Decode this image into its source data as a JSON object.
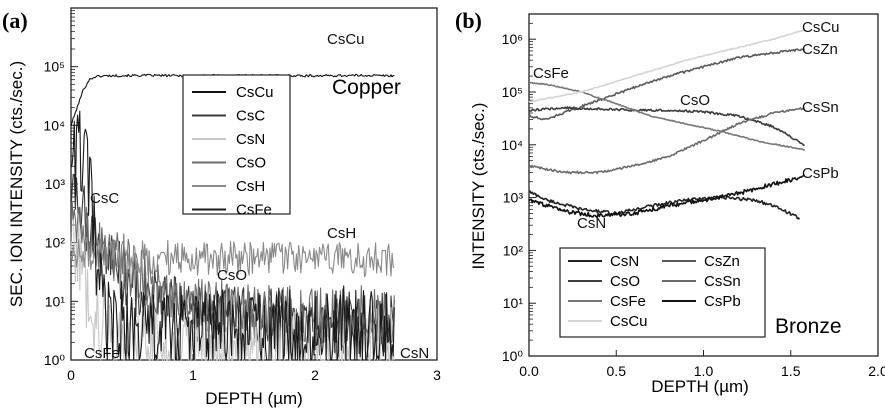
{
  "chart_data": [
    {
      "panel": "(a)",
      "type": "line",
      "material": "Copper",
      "xlabel": "DEPTH (µm)",
      "ylabel": "SEC. ION INTENSITY (cts./sec.)",
      "xlim": [
        0,
        3
      ],
      "ylim": [
        1,
        1000000
      ],
      "yscale": "log",
      "x_ticks": [
        "0",
        "1",
        "2",
        "3"
      ],
      "y_ticks": [
        "10⁰",
        "10¹",
        "10²",
        "10³",
        "10⁴",
        "10⁵"
      ],
      "legend": {
        "position": "upper-right",
        "entries": [
          "CsCu",
          "CsC",
          "CsN",
          "CsO",
          "CsH",
          "CsFe"
        ]
      },
      "series": [
        {
          "name": "CsCu",
          "color": "#111111",
          "noise": 0.02,
          "label": "CsCu",
          "points": [
            [
              0,
              10000
            ],
            [
              0.05,
              20000
            ],
            [
              0.1,
              40000
            ],
            [
              0.15,
              60000
            ],
            [
              0.2,
              68000
            ],
            [
              0.3,
              70000
            ],
            [
              0.6,
              71000
            ],
            [
              1,
              70000
            ],
            [
              1.5,
              71000
            ],
            [
              2,
              70000
            ],
            [
              2.4,
              71000
            ],
            [
              2.65,
              70000
            ]
          ]
        },
        {
          "name": "CsC",
          "color": "#3a3a3a",
          "noise": 0.55,
          "label": "CsC",
          "points": [
            [
              0,
              600
            ],
            [
              0.05,
              500
            ],
            [
              0.1,
              300
            ],
            [
              0.2,
              120
            ],
            [
              0.3,
              60
            ],
            [
              0.5,
              20
            ],
            [
              0.7,
              10
            ],
            [
              1,
              6
            ],
            [
              1.5,
              5
            ],
            [
              2,
              4
            ],
            [
              2.65,
              4
            ]
          ]
        },
        {
          "name": "CsN",
          "color": "#c8c8c8",
          "noise": 0.75,
          "label": "CsN",
          "points": [
            [
              0,
              150
            ],
            [
              0.05,
              100
            ],
            [
              0.1,
              30
            ],
            [
              0.2,
              6
            ],
            [
              0.3,
              3
            ],
            [
              0.5,
              2
            ],
            [
              1,
              1.6
            ],
            [
              2,
              1.5
            ],
            [
              2.65,
              1.5
            ]
          ]
        },
        {
          "name": "CsO",
          "color": "#6e6e6e",
          "noise": 0.5,
          "label": "CsO",
          "points": [
            [
              0,
              170
            ],
            [
              0.1,
              150
            ],
            [
              0.2,
              100
            ],
            [
              0.35,
              60
            ],
            [
              0.5,
              35
            ],
            [
              0.7,
              20
            ],
            [
              0.9,
              12
            ],
            [
              1.2,
              8
            ],
            [
              1.6,
              6
            ],
            [
              2.65,
              6
            ]
          ]
        },
        {
          "name": "CsH",
          "color": "#8a8a8a",
          "noise": 0.3,
          "label": "CsH",
          "points": [
            [
              0,
              80
            ],
            [
              0.2,
              60
            ],
            [
              0.5,
              55
            ],
            [
              1,
              55
            ],
            [
              1.5,
              55
            ],
            [
              2,
              52
            ],
            [
              2.65,
              50
            ]
          ]
        },
        {
          "name": "CsFe",
          "color": "#1a1a1a",
          "noise": 0.8,
          "label": "CsFe",
          "points": [
            [
              0,
              4000
            ],
            [
              0.05,
              3500
            ],
            [
              0.1,
              3000
            ],
            [
              0.15,
              1000
            ],
            [
              0.2,
              60
            ],
            [
              0.25,
              10
            ],
            [
              0.3,
              4
            ],
            [
              0.5,
              3
            ],
            [
              1,
              3
            ],
            [
              2,
              3
            ],
            [
              2.65,
              3
            ]
          ]
        }
      ]
    },
    {
      "panel": "(b)",
      "type": "line",
      "material": "Bronze",
      "xlabel": "DEPTH (µm)",
      "ylabel": "INTENSITY (cts./sec.)",
      "xlim": [
        0,
        2
      ],
      "ylim": [
        1,
        3000000
      ],
      "yscale": "log",
      "x_ticks": [
        "0.0",
        "0.5",
        "1.0",
        "1.5",
        "2.0"
      ],
      "y_ticks": [
        "10⁰",
        "10¹",
        "10²",
        "10³",
        "10⁴",
        "10⁵",
        "10⁶"
      ],
      "legend": {
        "position": "lower-left",
        "entries": [
          "CsN",
          "CsZn",
          "CsO",
          "CsSn",
          "CsFe",
          "CsPb",
          "CsCu"
        ]
      },
      "series": [
        {
          "name": "CsN",
          "color": "#222222",
          "noise": 0.03,
          "label": "CsN",
          "points": [
            [
              0,
              1300
            ],
            [
              0.1,
              900
            ],
            [
              0.3,
              600
            ],
            [
              0.5,
              500
            ],
            [
              0.7,
              700
            ],
            [
              0.9,
              900
            ],
            [
              1.1,
              1000
            ],
            [
              1.3,
              900
            ],
            [
              1.45,
              600
            ],
            [
              1.55,
              400
            ]
          ]
        },
        {
          "name": "CsZn",
          "color": "#5a5a5a",
          "noise": 0.02,
          "label": "CsZn",
          "points": [
            [
              0,
              35000
            ],
            [
              0.1,
              30000
            ],
            [
              0.2,
              40000
            ],
            [
              0.4,
              70000
            ],
            [
              0.6,
              120000
            ],
            [
              0.8,
              200000
            ],
            [
              1,
              300000
            ],
            [
              1.2,
              450000
            ],
            [
              1.4,
              550000
            ],
            [
              1.58,
              650000
            ]
          ]
        },
        {
          "name": "CsO",
          "color": "#3c3c3c",
          "noise": 0.02,
          "label": "CsO",
          "points": [
            [
              0,
              45000
            ],
            [
              0.2,
              50000
            ],
            [
              0.4,
              48000
            ],
            [
              0.6,
              45000
            ],
            [
              0.8,
              45000
            ],
            [
              1,
              42000
            ],
            [
              1.2,
              35000
            ],
            [
              1.4,
              22000
            ],
            [
              1.58,
              10000
            ]
          ]
        },
        {
          "name": "CsSn",
          "color": "#6a6a6a",
          "noise": 0.02,
          "label": "CsSn",
          "points": [
            [
              0,
              4000
            ],
            [
              0.2,
              3000
            ],
            [
              0.4,
              3000
            ],
            [
              0.6,
              4000
            ],
            [
              0.8,
              6000
            ],
            [
              1,
              12000
            ],
            [
              1.2,
              25000
            ],
            [
              1.4,
              40000
            ],
            [
              1.58,
              50000
            ]
          ]
        },
        {
          "name": "CsFe",
          "color": "#777777",
          "noise": 0.01,
          "label": "CsFe",
          "points": [
            [
              0,
              150000
            ],
            [
              0.1,
              140000
            ],
            [
              0.3,
              100000
            ],
            [
              0.5,
              60000
            ],
            [
              0.7,
              35000
            ],
            [
              0.9,
              25000
            ],
            [
              1.1,
              18000
            ],
            [
              1.3,
              12000
            ],
            [
              1.58,
              8000
            ]
          ]
        },
        {
          "name": "CsPb",
          "color": "#111111",
          "noise": 0.04,
          "label": "CsPb",
          "points": [
            [
              0,
              900
            ],
            [
              0.2,
              550
            ],
            [
              0.4,
              450
            ],
            [
              0.6,
              500
            ],
            [
              0.8,
              700
            ],
            [
              1,
              900
            ],
            [
              1.2,
              1200
            ],
            [
              1.4,
              1800
            ],
            [
              1.58,
              2500
            ]
          ]
        },
        {
          "name": "CsCu",
          "color": "#d4d4d4",
          "noise": 0.01,
          "label": "CsCu",
          "points": [
            [
              0,
              65000
            ],
            [
              0.3,
              100000
            ],
            [
              0.6,
              200000
            ],
            [
              0.9,
              400000
            ],
            [
              1.2,
              700000
            ],
            [
              1.4,
              1000000
            ],
            [
              1.58,
              1500000
            ]
          ]
        }
      ]
    }
  ]
}
